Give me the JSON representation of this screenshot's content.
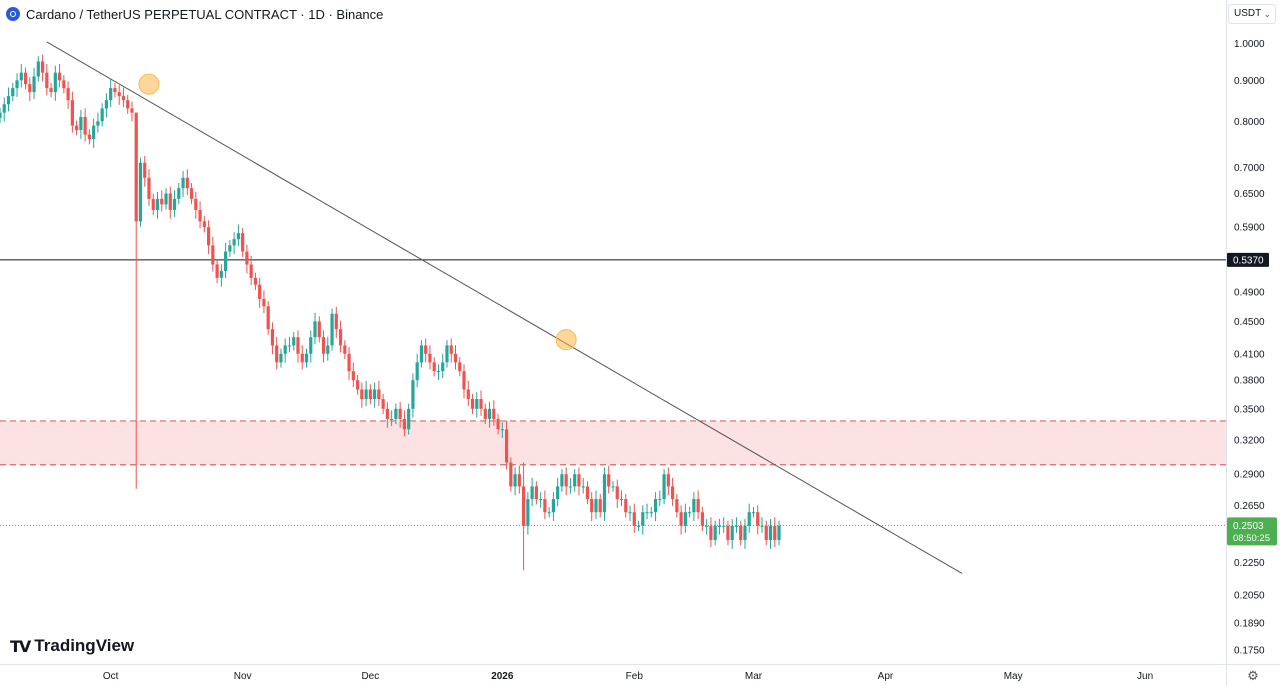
{
  "header": {
    "title": "Cardano / TetherUS PERPETUAL CONTRACT · 1D · Binance",
    "icon": "cardano-coin-icon"
  },
  "currency_selector": {
    "label": "USDT",
    "chevron": "chevron-down-icon"
  },
  "brand": {
    "text": "TradingView",
    "mark": "TV"
  },
  "settings_icon": "gear-icon",
  "colors": {
    "up": "#26a69a",
    "down": "#ef5350",
    "zone_fill": "#fde2e4",
    "zone_border": "#e06666",
    "trendline": "#555555",
    "level_line": "#131722",
    "price_label": "#4caf50",
    "marker": "#ffb74d"
  },
  "chart_data": {
    "type": "candlestick",
    "title": "Cardano / TetherUS PERPETUAL CONTRACT · 1D · Binance",
    "y_scale": "log",
    "ylim": [
      0.17,
      1.04
    ],
    "y_ticks": [
      "1.0000",
      "0.9000",
      "0.8000",
      "0.7000",
      "0.6500",
      "0.5900",
      "0.4900",
      "0.4500",
      "0.4100",
      "0.3800",
      "0.3500",
      "0.3200",
      "0.2900",
      "0.2650",
      "0.2250",
      "0.2050",
      "0.1890",
      "0.1750"
    ],
    "x_ticks": [
      {
        "label": "Oct",
        "date": "2025-10-01"
      },
      {
        "label": "Nov",
        "date": "2025-11-01"
      },
      {
        "label": "Dec",
        "date": "2025-12-01"
      },
      {
        "label": "2026",
        "date": "2026-01-01",
        "bold": true
      },
      {
        "label": "Feb",
        "date": "2026-02-01"
      },
      {
        "label": "Mar",
        "date": "2026-03-01"
      },
      {
        "label": "Apr",
        "date": "2026-04-01"
      },
      {
        "label": "May",
        "date": "2026-05-01"
      },
      {
        "label": "Jun",
        "date": "2026-06-01"
      }
    ],
    "x_range": [
      "2025-09-05",
      "2026-06-20"
    ],
    "first_candle_date": "2025-09-05",
    "closes": [
      0.82,
      0.84,
      0.86,
      0.88,
      0.9,
      0.92,
      0.89,
      0.87,
      0.91,
      0.95,
      0.92,
      0.88,
      0.87,
      0.92,
      0.9,
      0.88,
      0.85,
      0.79,
      0.78,
      0.81,
      0.77,
      0.76,
      0.79,
      0.8,
      0.83,
      0.85,
      0.88,
      0.87,
      0.86,
      0.85,
      0.83,
      0.82,
      0.6,
      0.71,
      0.68,
      0.64,
      0.62,
      0.64,
      0.63,
      0.65,
      0.62,
      0.64,
      0.66,
      0.68,
      0.66,
      0.64,
      0.62,
      0.6,
      0.59,
      0.56,
      0.53,
      0.51,
      0.52,
      0.55,
      0.56,
      0.57,
      0.58,
      0.55,
      0.53,
      0.51,
      0.5,
      0.48,
      0.47,
      0.44,
      0.42,
      0.4,
      0.41,
      0.42,
      0.42,
      0.43,
      0.41,
      0.4,
      0.41,
      0.43,
      0.45,
      0.43,
      0.41,
      0.42,
      0.46,
      0.44,
      0.42,
      0.41,
      0.39,
      0.38,
      0.37,
      0.36,
      0.37,
      0.36,
      0.37,
      0.36,
      0.35,
      0.34,
      0.34,
      0.35,
      0.34,
      0.33,
      0.35,
      0.38,
      0.4,
      0.42,
      0.41,
      0.4,
      0.39,
      0.39,
      0.4,
      0.42,
      0.41,
      0.4,
      0.39,
      0.37,
      0.36,
      0.35,
      0.36,
      0.35,
      0.34,
      0.35,
      0.34,
      0.33,
      0.33,
      0.3,
      0.28,
      0.29,
      0.28,
      0.25,
      0.27,
      0.28,
      0.27,
      0.27,
      0.26,
      0.26,
      0.27,
      0.28,
      0.29,
      0.28,
      0.28,
      0.29,
      0.28,
      0.28,
      0.27,
      0.26,
      0.27,
      0.26,
      0.29,
      0.28,
      0.28,
      0.27,
      0.27,
      0.26,
      0.26,
      0.25,
      0.25,
      0.26,
      0.26,
      0.26,
      0.27,
      0.27,
      0.29,
      0.28,
      0.27,
      0.26,
      0.25,
      0.26,
      0.26,
      0.27,
      0.26,
      0.25,
      0.25,
      0.24,
      0.25,
      0.25,
      0.25,
      0.24,
      0.25,
      0.25,
      0.24,
      0.25,
      0.26,
      0.26,
      0.25,
      0.25,
      0.24,
      0.25,
      0.24,
      0.25
    ],
    "wick_events": [
      {
        "index": 32,
        "high": 0.82,
        "low": 0.278
      },
      {
        "index": 123,
        "high": 0.3,
        "low": 0.22
      }
    ],
    "trendline": {
      "start": {
        "date": "2025-09-16",
        "price": 1.005
      },
      "end": {
        "date": "2026-04-19",
        "price": 0.218
      }
    },
    "horizontal_level": {
      "price": 0.537,
      "label": "0.5370"
    },
    "zone": {
      "top": 0.338,
      "bottom": 0.298
    },
    "touch_markers": [
      {
        "date": "2025-10-10",
        "price": 0.89
      },
      {
        "date": "2026-01-16",
        "price": 0.427
      }
    ],
    "last_price": {
      "price": 0.2503,
      "label": "0.2503",
      "countdown": "08:50:25"
    }
  }
}
